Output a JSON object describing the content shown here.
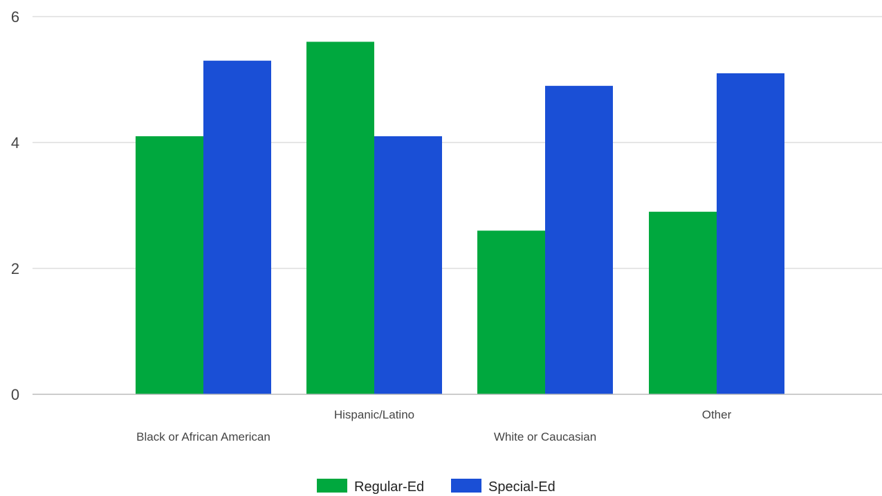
{
  "chart_data": {
    "type": "bar",
    "categories": [
      "Black or African American",
      "Hispanic/Latino",
      "White or Caucasian",
      "Other"
    ],
    "series": [
      {
        "name": "Regular-Ed",
        "color": "#00a83e",
        "values": [
          4.1,
          5.6,
          2.6,
          2.9
        ]
      },
      {
        "name": "Special-Ed",
        "color": "#1a4fd6",
        "values": [
          5.3,
          4.1,
          4.9,
          5.1
        ]
      }
    ],
    "ylim": [
      0,
      6
    ],
    "yticks": [
      "0",
      "2",
      "4",
      "6"
    ],
    "grid": true,
    "legend_position": "bottom"
  }
}
